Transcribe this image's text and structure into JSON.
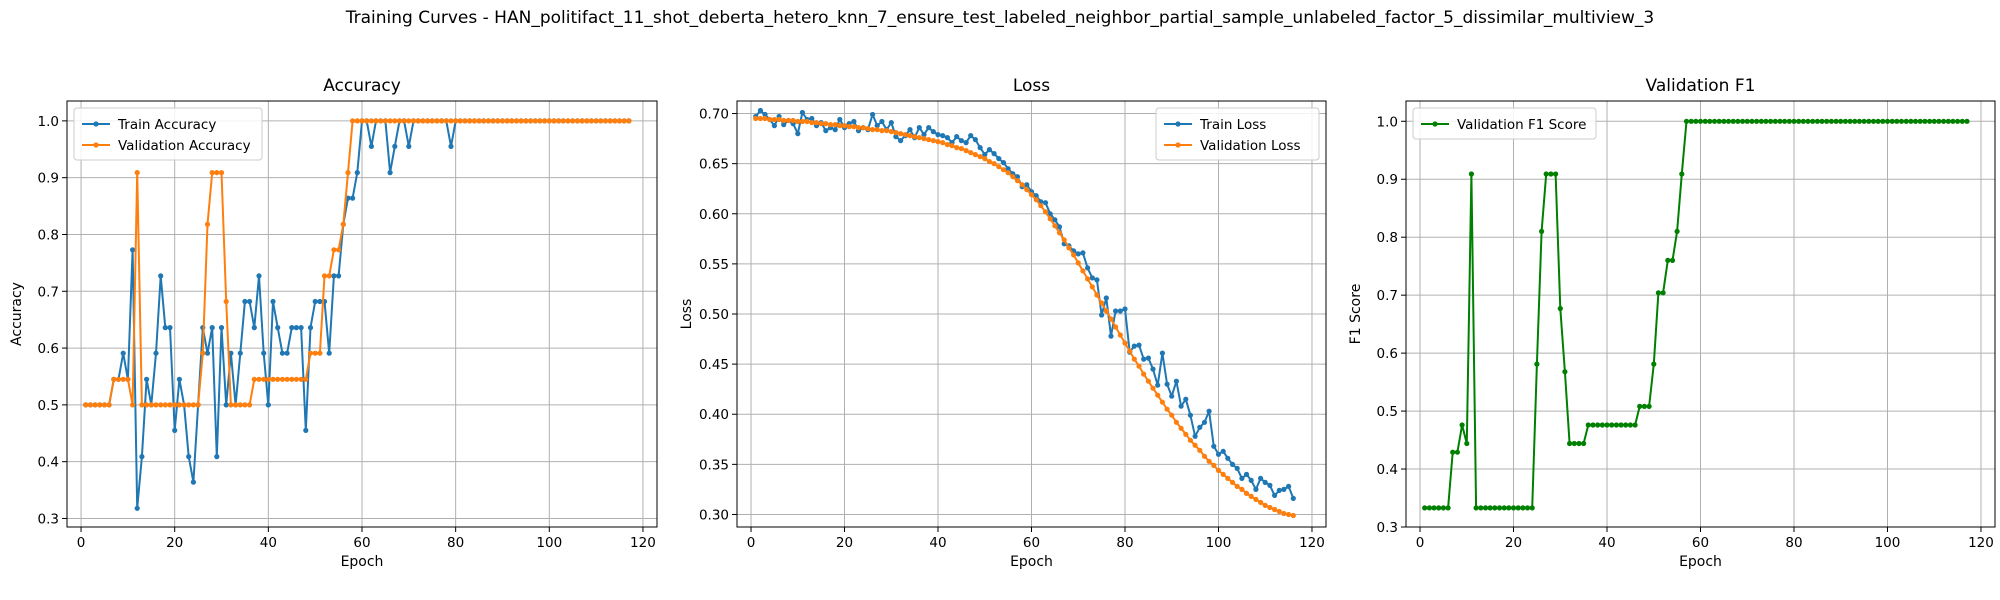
{
  "suptitle": "Training Curves - HAN_politifact_11_shot_deberta_hetero_knn_7_ensure_test_labeled_neighbor_partial_sample_unlabeled_factor_5_dissimilar_multiview_3",
  "chart_data": [
    {
      "type": "line",
      "title": "Accuracy",
      "xlabel": "Epoch",
      "ylabel": "Accuracy",
      "xlim": [
        -3,
        123
      ],
      "ylim": [
        0.285,
        1.035
      ],
      "xticks": [
        0,
        20,
        40,
        60,
        80,
        100,
        120
      ],
      "yticks": [
        0.3,
        0.4,
        0.5,
        0.6,
        0.7,
        0.8,
        0.9,
        1.0
      ],
      "ytick_labels": [
        "0.3",
        "0.4",
        "0.5",
        "0.6",
        "0.7",
        "0.8",
        "0.9",
        "1.0"
      ],
      "grid": true,
      "legend_position": "upper-left",
      "series": [
        {
          "name": "Train Accuracy",
          "color": "#1f77b4",
          "x_start": 1,
          "values": [
            0.5,
            0.5,
            0.5,
            0.5,
            0.5,
            0.5,
            0.545,
            0.545,
            0.591,
            0.545,
            0.773,
            0.318,
            0.409,
            0.545,
            0.5,
            0.591,
            0.727,
            0.636,
            0.636,
            0.455,
            0.545,
            0.5,
            0.409,
            0.364,
            0.5,
            0.636,
            0.591,
            0.636,
            0.409,
            0.636,
            0.5,
            0.591,
            0.5,
            0.591,
            0.682,
            0.682,
            0.636,
            0.727,
            0.591,
            0.5,
            0.682,
            0.636,
            0.591,
            0.591,
            0.636,
            0.636,
            0.636,
            0.455,
            0.636,
            0.682,
            0.682,
            0.682,
            0.591,
            0.727,
            0.727,
            0.818,
            0.864,
            0.864,
            0.909,
            1.0,
            1.0,
            0.955,
            1.0,
            1.0,
            1.0,
            0.909,
            0.955,
            1.0,
            1.0,
            0.955,
            1.0,
            1.0,
            1.0,
            1.0,
            1.0,
            1.0,
            1.0,
            1.0,
            0.955,
            1.0,
            1.0,
            1.0,
            1.0,
            1.0,
            1.0,
            1.0,
            1.0,
            1.0,
            1.0,
            1.0,
            1.0,
            1.0,
            1.0,
            1.0,
            1.0,
            1.0,
            1.0,
            1.0,
            1.0,
            1.0,
            1.0,
            1.0,
            1.0,
            1.0,
            1.0,
            1.0,
            1.0,
            1.0,
            1.0,
            1.0,
            1.0,
            1.0,
            1.0,
            1.0,
            1.0,
            1.0,
            1.0
          ]
        },
        {
          "name": "Validation Accuracy",
          "color": "#ff7f0e",
          "x_start": 1,
          "values": [
            0.5,
            0.5,
            0.5,
            0.5,
            0.5,
            0.5,
            0.545,
            0.545,
            0.545,
            0.545,
            0.5,
            0.909,
            0.5,
            0.5,
            0.5,
            0.5,
            0.5,
            0.5,
            0.5,
            0.5,
            0.5,
            0.5,
            0.5,
            0.5,
            0.5,
            0.591,
            0.818,
            0.909,
            0.909,
            0.909,
            0.682,
            0.5,
            0.5,
            0.5,
            0.5,
            0.5,
            0.545,
            0.545,
            0.545,
            0.545,
            0.545,
            0.545,
            0.545,
            0.545,
            0.545,
            0.545,
            0.545,
            0.545,
            0.591,
            0.591,
            0.591,
            0.727,
            0.727,
            0.773,
            0.773,
            0.818,
            0.909,
            1.0,
            1.0,
            1.0,
            1.0,
            1.0,
            1.0,
            1.0,
            1.0,
            1.0,
            1.0,
            1.0,
            1.0,
            1.0,
            1.0,
            1.0,
            1.0,
            1.0,
            1.0,
            1.0,
            1.0,
            1.0,
            1.0,
            1.0,
            1.0,
            1.0,
            1.0,
            1.0,
            1.0,
            1.0,
            1.0,
            1.0,
            1.0,
            1.0,
            1.0,
            1.0,
            1.0,
            1.0,
            1.0,
            1.0,
            1.0,
            1.0,
            1.0,
            1.0,
            1.0,
            1.0,
            1.0,
            1.0,
            1.0,
            1.0,
            1.0,
            1.0,
            1.0,
            1.0,
            1.0,
            1.0,
            1.0,
            1.0,
            1.0,
            1.0,
            1.0
          ]
        }
      ]
    },
    {
      "type": "line",
      "title": "Loss",
      "xlabel": "Epoch",
      "ylabel": "Loss",
      "xlim": [
        -3,
        123
      ],
      "ylim": [
        0.2875,
        0.7125
      ],
      "xticks": [
        0,
        20,
        40,
        60,
        80,
        100,
        120
      ],
      "yticks": [
        0.3,
        0.35,
        0.4,
        0.45,
        0.5,
        0.55,
        0.6,
        0.65,
        0.7
      ],
      "ytick_labels": [
        "0.30",
        "0.35",
        "0.40",
        "0.45",
        "0.50",
        "0.55",
        "0.60",
        "0.65",
        "0.70"
      ],
      "grid": true,
      "legend_position": "upper-right",
      "series": [
        {
          "name": "Train Loss",
          "color": "#1f77b4",
          "x_start": 1,
          "values": [
            0.697,
            0.703,
            0.699,
            0.694,
            0.688,
            0.697,
            0.689,
            0.693,
            0.69,
            0.68,
            0.701,
            0.694,
            0.695,
            0.688,
            0.691,
            0.683,
            0.686,
            0.684,
            0.694,
            0.686,
            0.69,
            0.692,
            0.683,
            0.686,
            0.684,
            0.699,
            0.688,
            0.692,
            0.684,
            0.691,
            0.677,
            0.673,
            0.678,
            0.684,
            0.676,
            0.686,
            0.679,
            0.686,
            0.682,
            0.679,
            0.678,
            0.676,
            0.671,
            0.677,
            0.673,
            0.671,
            0.678,
            0.674,
            0.666,
            0.659,
            0.664,
            0.66,
            0.655,
            0.651,
            0.645,
            0.64,
            0.637,
            0.627,
            0.629,
            0.622,
            0.618,
            0.612,
            0.611,
            0.6,
            0.594,
            0.587,
            0.57,
            0.568,
            0.563,
            0.56,
            0.561,
            0.546,
            0.536,
            0.534,
            0.499,
            0.516,
            0.478,
            0.503,
            0.503,
            0.505,
            0.462,
            0.468,
            0.469,
            0.455,
            0.456,
            0.445,
            0.429,
            0.461,
            0.43,
            0.418,
            0.433,
            0.408,
            0.415,
            0.399,
            0.378,
            0.387,
            0.392,
            0.403,
            0.368,
            0.36,
            0.363,
            0.356,
            0.35,
            0.346,
            0.336,
            0.34,
            0.334,
            0.325,
            0.336,
            0.332,
            0.329,
            0.319,
            0.324,
            0.325,
            0.328,
            0.316
          ]
        },
        {
          "name": "Validation Loss",
          "color": "#ff7f0e",
          "x_start": 1,
          "values": [
            0.695,
            0.695,
            0.695,
            0.694,
            0.694,
            0.694,
            0.693,
            0.693,
            0.693,
            0.692,
            0.692,
            0.692,
            0.691,
            0.691,
            0.69,
            0.69,
            0.689,
            0.689,
            0.688,
            0.688,
            0.687,
            0.687,
            0.686,
            0.686,
            0.685,
            0.684,
            0.684,
            0.683,
            0.683,
            0.682,
            0.681,
            0.68,
            0.679,
            0.678,
            0.677,
            0.676,
            0.675,
            0.674,
            0.673,
            0.672,
            0.671,
            0.669,
            0.668,
            0.666,
            0.665,
            0.663,
            0.661,
            0.659,
            0.657,
            0.655,
            0.652,
            0.65,
            0.647,
            0.644,
            0.641,
            0.637,
            0.633,
            0.629,
            0.624,
            0.619,
            0.614,
            0.608,
            0.602,
            0.595,
            0.588,
            0.581,
            0.574,
            0.566,
            0.559,
            0.551,
            0.543,
            0.535,
            0.527,
            0.519,
            0.511,
            0.503,
            0.495,
            0.487,
            0.479,
            0.471,
            0.463,
            0.455,
            0.448,
            0.44,
            0.433,
            0.426,
            0.419,
            0.412,
            0.405,
            0.399,
            0.392,
            0.386,
            0.38,
            0.374,
            0.369,
            0.364,
            0.358,
            0.353,
            0.349,
            0.344,
            0.34,
            0.336,
            0.332,
            0.328,
            0.325,
            0.321,
            0.318,
            0.315,
            0.312,
            0.309,
            0.307,
            0.305,
            0.303,
            0.301,
            0.3,
            0.299
          ]
        }
      ]
    },
    {
      "type": "line",
      "title": "Validation F1",
      "xlabel": "Epoch",
      "ylabel": "F1 Score",
      "xlim": [
        -3,
        123
      ],
      "ylim": [
        0.3,
        1.035
      ],
      "xticks": [
        0,
        20,
        40,
        60,
        80,
        100,
        120
      ],
      "yticks": [
        0.3,
        0.4,
        0.5,
        0.6,
        0.7,
        0.8,
        0.9,
        1.0
      ],
      "ytick_labels": [
        "0.3",
        "0.4",
        "0.5",
        "0.6",
        "0.7",
        "0.8",
        "0.9",
        "1.0"
      ],
      "grid": true,
      "legend_position": "upper-left",
      "series": [
        {
          "name": "Validation F1 Score",
          "color": "#008000",
          "x_start": 1,
          "values": [
            0.333,
            0.333,
            0.333,
            0.333,
            0.333,
            0.333,
            0.429,
            0.429,
            0.476,
            0.444,
            0.909,
            0.333,
            0.333,
            0.333,
            0.333,
            0.333,
            0.333,
            0.333,
            0.333,
            0.333,
            0.333,
            0.333,
            0.333,
            0.333,
            0.581,
            0.81,
            0.909,
            0.909,
            0.909,
            0.677,
            0.568,
            0.444,
            0.444,
            0.444,
            0.444,
            0.476,
            0.476,
            0.476,
            0.476,
            0.476,
            0.476,
            0.476,
            0.476,
            0.476,
            0.476,
            0.476,
            0.508,
            0.508,
            0.508,
            0.581,
            0.704,
            0.704,
            0.76,
            0.76,
            0.81,
            0.909,
            1.0,
            1.0,
            1.0,
            1.0,
            1.0,
            1.0,
            1.0,
            1.0,
            1.0,
            1.0,
            1.0,
            1.0,
            1.0,
            1.0,
            1.0,
            1.0,
            1.0,
            1.0,
            1.0,
            1.0,
            1.0,
            1.0,
            1.0,
            1.0,
            1.0,
            1.0,
            1.0,
            1.0,
            1.0,
            1.0,
            1.0,
            1.0,
            1.0,
            1.0,
            1.0,
            1.0,
            1.0,
            1.0,
            1.0,
            1.0,
            1.0,
            1.0,
            1.0,
            1.0,
            1.0,
            1.0,
            1.0,
            1.0,
            1.0,
            1.0,
            1.0,
            1.0,
            1.0,
            1.0,
            1.0,
            1.0,
            1.0,
            1.0,
            1.0,
            1.0,
            1.0
          ]
        }
      ]
    }
  ]
}
